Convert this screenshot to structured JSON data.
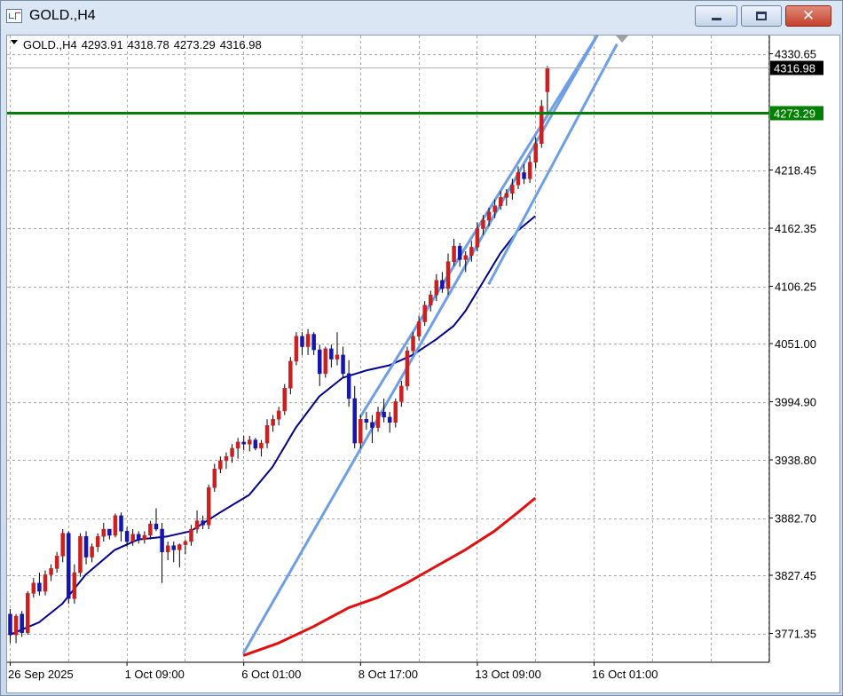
{
  "window": {
    "title": "GOLD.,H4",
    "minimize_label": "",
    "maximize_label": "",
    "close_label": "✕"
  },
  "info_bar": {
    "symbol": "GOLD.,H4",
    "open": "4293.91",
    "high": "4318.78",
    "low": "4273.29",
    "close": "4316.98"
  },
  "chart_data": {
    "type": "candlestick",
    "title": "",
    "price_axis_ticks": [
      4330.65,
      4273.29,
      4218.45,
      4162.35,
      4106.25,
      4051.0,
      3994.9,
      3938.8,
      3882.7,
      3827.45,
      3771.35
    ],
    "price_axis_labels": [
      "4330.65",
      "4218.45",
      "4162.35",
      "4106.25",
      "4051.00",
      "3994.90",
      "3938.80",
      "3882.70",
      "3827.45",
      "3771.35"
    ],
    "time_axis_labels": [
      {
        "label": "26 Sep 2025",
        "bar": 0
      },
      {
        "label": "1 Oct 09:00",
        "bar": 20
      },
      {
        "label": "6 Oct 01:00",
        "bar": 40
      },
      {
        "label": "8 Oct 17:00",
        "bar": 60
      },
      {
        "label": "13 Oct 09:00",
        "bar": 80
      },
      {
        "label": "16 Oct 01:00",
        "bar": 100
      }
    ],
    "current_price": {
      "value": 4316.98,
      "label": "4316.98"
    },
    "horizontal_level": {
      "value": 4273.29,
      "label": "4273.29",
      "color": "#008000"
    },
    "ylim": [
      3748,
      4352
    ],
    "bull_color": "#cc1f1f",
    "bear_color": "#1515b0",
    "candles": [
      [
        3790,
        3795,
        3762,
        3770
      ],
      [
        3770,
        3790,
        3762,
        3788
      ],
      [
        3790,
        3793,
        3768,
        3772
      ],
      [
        3772,
        3812,
        3770,
        3810
      ],
      [
        3810,
        3825,
        3806,
        3820
      ],
      [
        3820,
        3830,
        3808,
        3812
      ],
      [
        3812,
        3832,
        3808,
        3828
      ],
      [
        3828,
        3838,
        3822,
        3834
      ],
      [
        3834,
        3850,
        3830,
        3846
      ],
      [
        3846,
        3872,
        3840,
        3868
      ],
      [
        3868,
        3870,
        3800,
        3805
      ],
      [
        3805,
        3838,
        3800,
        3830
      ],
      [
        3830,
        3868,
        3826,
        3865
      ],
      [
        3865,
        3870,
        3838,
        3845
      ],
      [
        3845,
        3858,
        3840,
        3855
      ],
      [
        3855,
        3868,
        3850,
        3865
      ],
      [
        3865,
        3878,
        3860,
        3872
      ],
      [
        3872,
        3872,
        3862,
        3866
      ],
      [
        3866,
        3887,
        3864,
        3885
      ],
      [
        3885,
        3888,
        3860,
        3870
      ],
      [
        3870,
        3874,
        3855,
        3860
      ],
      [
        3860,
        3872,
        3856,
        3867
      ],
      [
        3867,
        3870,
        3858,
        3862
      ],
      [
        3862,
        3870,
        3858,
        3866
      ],
      [
        3866,
        3880,
        3862,
        3877
      ],
      [
        3877,
        3892,
        3870,
        3872
      ],
      [
        3872,
        3878,
        3820,
        3850
      ],
      [
        3850,
        3860,
        3842,
        3856
      ],
      [
        3856,
        3860,
        3840,
        3852
      ],
      [
        3852,
        3858,
        3835,
        3857
      ],
      [
        3857,
        3862,
        3848,
        3860
      ],
      [
        3860,
        3876,
        3856,
        3872
      ],
      [
        3872,
        3890,
        3868,
        3880
      ],
      [
        3880,
        3885,
        3872,
        3876
      ],
      [
        3876,
        3915,
        3872,
        3912
      ],
      [
        3912,
        3935,
        3908,
        3930
      ],
      [
        3930,
        3942,
        3926,
        3938
      ],
      [
        3938,
        3946,
        3930,
        3942
      ],
      [
        3942,
        3954,
        3936,
        3950
      ],
      [
        3950,
        3960,
        3940,
        3956
      ],
      [
        3956,
        3962,
        3948,
        3954
      ],
      [
        3954,
        3962,
        3947,
        3958
      ],
      [
        3958,
        3960,
        3948,
        3950
      ],
      [
        3950,
        3958,
        3942,
        3955
      ],
      [
        3955,
        3978,
        3950,
        3972
      ],
      [
        3972,
        3982,
        3966,
        3978
      ],
      [
        3978,
        3990,
        3972,
        3986
      ],
      [
        3986,
        4012,
        3982,
        4008
      ],
      [
        4008,
        4038,
        4002,
        4034
      ],
      [
        4034,
        4062,
        4030,
        4058
      ],
      [
        4058,
        4062,
        4040,
        4048
      ],
      [
        4048,
        4065,
        4040,
        4060
      ],
      [
        4060,
        4062,
        4040,
        4045
      ],
      [
        4045,
        4050,
        4010,
        4022
      ],
      [
        4022,
        4048,
        4018,
        4046
      ],
      [
        4046,
        4050,
        4028,
        4036
      ],
      [
        4036,
        4062,
        4030,
        4040
      ],
      [
        4040,
        4048,
        4018,
        4022
      ],
      [
        4022,
        4035,
        3990,
        3998
      ],
      [
        3998,
        4010,
        3950,
        3955
      ],
      [
        3955,
        3982,
        3950,
        3978
      ],
      [
        3978,
        3985,
        3968,
        3975
      ],
      [
        3975,
        3982,
        3955,
        3970
      ],
      [
        3970,
        3990,
        3966,
        3985
      ],
      [
        3985,
        3998,
        3975,
        3980
      ],
      [
        3980,
        3985,
        3965,
        3975
      ],
      [
        3975,
        3998,
        3970,
        3995
      ],
      [
        3995,
        4015,
        3990,
        4010
      ],
      [
        4010,
        4048,
        4006,
        4044
      ],
      [
        4044,
        4062,
        4040,
        4058
      ],
      [
        4058,
        4078,
        4054,
        4072
      ],
      [
        4072,
        4092,
        4068,
        4088
      ],
      [
        4088,
        4102,
        4082,
        4098
      ],
      [
        4098,
        4118,
        4092,
        4112
      ],
      [
        4112,
        4120,
        4100,
        4104
      ],
      [
        4104,
        4138,
        4098,
        4130
      ],
      [
        4130,
        4152,
        4126,
        4145
      ],
      [
        4145,
        4148,
        4125,
        4132
      ],
      [
        4132,
        4140,
        4120,
        4136
      ],
      [
        4136,
        4150,
        4130,
        4144
      ],
      [
        4144,
        4168,
        4140,
        4162
      ],
      [
        4162,
        4175,
        4156,
        4170
      ],
      [
        4170,
        4182,
        4164,
        4178
      ],
      [
        4178,
        4190,
        4172,
        4184
      ],
      [
        4184,
        4198,
        4180,
        4192
      ],
      [
        4192,
        4200,
        4184,
        4196
      ],
      [
        4196,
        4210,
        4190,
        4204
      ],
      [
        4204,
        4222,
        4200,
        4216
      ],
      [
        4216,
        4224,
        4205,
        4210
      ],
      [
        4210,
        4232,
        4206,
        4226
      ],
      [
        4226,
        4250,
        4220,
        4244
      ],
      [
        4244,
        4286,
        4240,
        4280
      ],
      [
        4293.91,
        4318.78,
        4273.29,
        4316.98
      ]
    ],
    "ma_fast": [
      [
        0,
        3770
      ],
      [
        5,
        3782
      ],
      [
        9,
        3800
      ],
      [
        13,
        3828
      ],
      [
        18,
        3852
      ],
      [
        22,
        3862
      ],
      [
        27,
        3865
      ],
      [
        31,
        3870
      ],
      [
        36,
        3888
      ],
      [
        41,
        3905
      ],
      [
        45,
        3932
      ],
      [
        49,
        3970
      ],
      [
        53,
        4000
      ],
      [
        57,
        4018
      ],
      [
        61,
        4025
      ],
      [
        65,
        4030
      ],
      [
        69,
        4040
      ],
      [
        73,
        4055
      ],
      [
        76,
        4068
      ],
      [
        78,
        4082
      ],
      [
        81,
        4110
      ],
      [
        84,
        4138
      ],
      [
        87,
        4160
      ],
      [
        90,
        4174
      ]
    ],
    "ma_slow": [
      [
        40,
        3750
      ],
      [
        46,
        3762
      ],
      [
        52,
        3778
      ],
      [
        58,
        3796
      ],
      [
        63,
        3806
      ],
      [
        68,
        3820
      ],
      [
        73,
        3836
      ],
      [
        78,
        3852
      ],
      [
        83,
        3870
      ],
      [
        87,
        3888
      ],
      [
        90,
        3902
      ]
    ],
    "trendlines": [
      {
        "from": [
          40,
          3752
        ],
        "to": [
          101,
          4352
        ]
      },
      {
        "from": [
          82,
          4108
        ],
        "to": [
          104,
          4340
        ]
      },
      {
        "from": [
          60,
          3980
        ],
        "to": [
          101,
          4352
        ]
      }
    ],
    "trendline_color": "#6d9ee6",
    "ma_fast_color": "#00008b",
    "ma_slow_color": "#e01010",
    "grid": true
  }
}
